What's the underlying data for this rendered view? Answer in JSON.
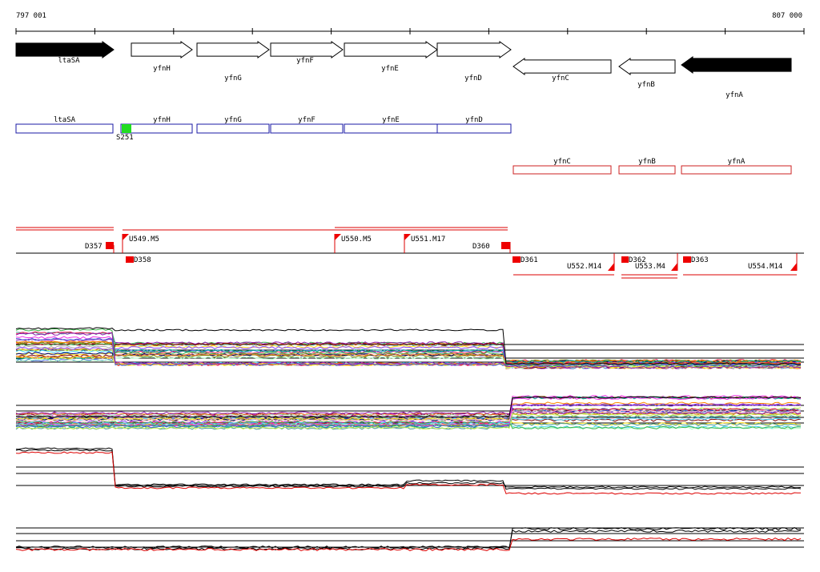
{
  "ruler": {
    "start_label": "797 001",
    "end_label": "807 000"
  },
  "genes": [
    {
      "name": "ltaSA",
      "strand": "+",
      "fill": "#000000"
    },
    {
      "name": "yfnH",
      "strand": "+",
      "fill": "#ffffff"
    },
    {
      "name": "yfnG",
      "strand": "+",
      "fill": "#ffffff"
    },
    {
      "name": "yfnF",
      "strand": "+",
      "fill": "#ffffff"
    },
    {
      "name": "yfnE",
      "strand": "+",
      "fill": "#ffffff"
    },
    {
      "name": "yfnD",
      "strand": "+",
      "fill": "#ffffff"
    },
    {
      "name": "yfnC",
      "strand": "-",
      "fill": "#ffffff"
    },
    {
      "name": "yfnB",
      "strand": "-",
      "fill": "#ffffff"
    },
    {
      "name": "yfnA",
      "strand": "-",
      "fill": "#000000"
    }
  ],
  "forward_boxes": [
    "ltaSA",
    "yfnH",
    "yfnG",
    "yfnF",
    "yfnE",
    "yfnD"
  ],
  "reverse_boxes": [
    "yfnC",
    "yfnB",
    "yfnA"
  ],
  "site_marker": {
    "label": "S251",
    "color": "#22dd22"
  },
  "transcription_units": [
    "U549.M5",
    "U550.M5",
    "U551.M17",
    "U552.M14",
    "U553.M4",
    "U554.M14"
  ],
  "downstream_markers": [
    "D357",
    "D358",
    "D360",
    "D361",
    "D362",
    "D363"
  ],
  "colors": {
    "forward_box_outline": "#1a1aa6",
    "reverse_box_outline": "#cc2222",
    "marker": "#ee0000",
    "line_red": "#dd0000"
  }
}
